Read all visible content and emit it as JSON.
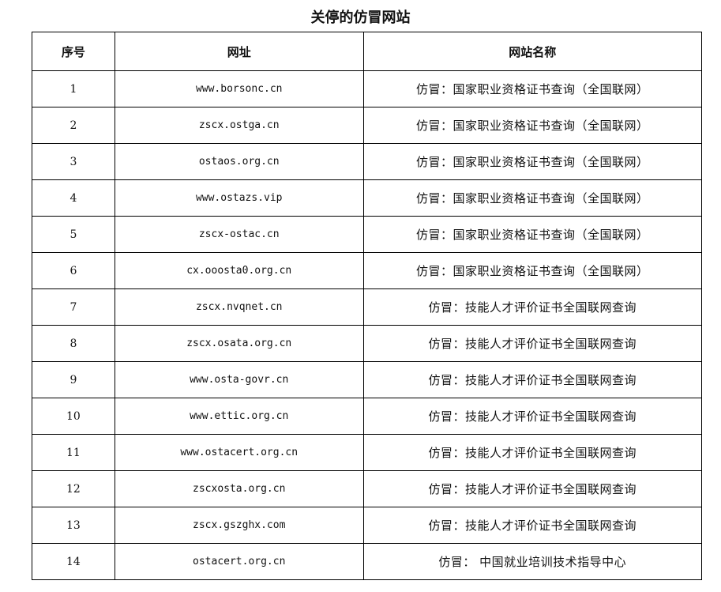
{
  "title": "关停的仿冒网站",
  "headers": [
    "序号",
    "网址",
    "网站名称"
  ],
  "rows": [
    [
      "1",
      "www.borsonc.cn",
      "仿冒：国家职业资格证书查询（全国联网）"
    ],
    [
      "2",
      "zscx.ostga.cn",
      "仿冒：国家职业资格证书查询（全国联网）"
    ],
    [
      "3",
      "ostaos.org.cn",
      "仿冒：国家职业资格证书查询（全国联网）"
    ],
    [
      "4",
      "www.ostazs.vip",
      "仿冒：国家职业资格证书查询（全国联网）"
    ],
    [
      "5",
      "zscx-ostac.cn",
      "仿冒：国家职业资格证书查询（全国联网）"
    ],
    [
      "6",
      "cx.ooosta0.org.cn",
      "仿冒：国家职业资格证书查询（全国联网）"
    ],
    [
      "7",
      "zscx.nvqnet.cn",
      "仿冒：技能人才评价证书全国联网查询"
    ],
    [
      "8",
      "zscx.osata.org.cn",
      "仿冒：技能人才评价证书全国联网查询"
    ],
    [
      "9",
      "www.osta-govr.cn",
      "仿冒：技能人才评价证书全国联网查询"
    ],
    [
      "10",
      "www.ettic.org.cn",
      "仿冒：技能人才评价证书全国联网查询"
    ],
    [
      "11",
      "www.ostacert.org.cn",
      "仿冒：技能人才评价证书全国联网查询"
    ],
    [
      "12",
      "zscxosta.org.cn",
      "仿冒：技能人才评价证书全国联网查询"
    ],
    [
      "13",
      "zscx.gszghx.com",
      "仿冒：技能人才评价证书全国联网查询"
    ],
    [
      "14",
      "ostacert.org.cn",
      "仿冒： 中国就业培训技术指导中心"
    ]
  ]
}
